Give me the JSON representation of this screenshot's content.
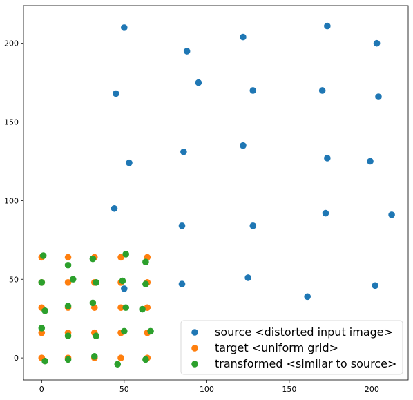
{
  "chart_data": {
    "type": "scatter",
    "title": "",
    "xlabel": "",
    "ylabel": "",
    "xlim": [
      -11,
      222
    ],
    "ylim": [
      -14,
      224
    ],
    "x_ticks": [
      0,
      50,
      100,
      150,
      200
    ],
    "y_ticks": [
      0,
      50,
      100,
      150,
      200
    ],
    "x_tick_labels": [
      "0",
      "50",
      "100",
      "150",
      "200"
    ],
    "y_tick_labels": [
      "0",
      "50",
      "100",
      "150",
      "200"
    ],
    "grid": false,
    "legend": {
      "position": "bottom-right"
    },
    "series": [
      {
        "name": "source <distorted input image>",
        "color": "#1f77b4",
        "points": [
          [
            50,
            210
          ],
          [
            122,
            204
          ],
          [
            173,
            211
          ],
          [
            203,
            200
          ],
          [
            88,
            195
          ],
          [
            45,
            168
          ],
          [
            95,
            175
          ],
          [
            128,
            170
          ],
          [
            170,
            170
          ],
          [
            204,
            166
          ],
          [
            86,
            131
          ],
          [
            53,
            124
          ],
          [
            122,
            135
          ],
          [
            173,
            127
          ],
          [
            199,
            125
          ],
          [
            44,
            95
          ],
          [
            85,
            84
          ],
          [
            128,
            84
          ],
          [
            172,
            92
          ],
          [
            212,
            91
          ],
          [
            85,
            47
          ],
          [
            125,
            51
          ],
          [
            161,
            39
          ],
          [
            202,
            46
          ],
          [
            50,
            44
          ]
        ]
      },
      {
        "name": "target <uniform grid>",
        "color": "#ff7f0e",
        "points": [
          [
            0,
            64
          ],
          [
            16,
            64
          ],
          [
            32,
            64
          ],
          [
            48,
            64
          ],
          [
            64,
            64
          ],
          [
            0,
            48
          ],
          [
            16,
            48
          ],
          [
            32,
            48
          ],
          [
            48,
            48
          ],
          [
            64,
            48
          ],
          [
            0,
            32
          ],
          [
            16,
            32
          ],
          [
            32,
            32
          ],
          [
            48,
            32
          ],
          [
            64,
            32
          ],
          [
            0,
            16
          ],
          [
            16,
            16
          ],
          [
            32,
            16
          ],
          [
            48,
            16
          ],
          [
            64,
            16
          ],
          [
            0,
            0
          ],
          [
            16,
            0
          ],
          [
            32,
            0
          ],
          [
            48,
            0
          ],
          [
            64,
            0
          ]
        ]
      },
      {
        "name": "transformed <similar to source>",
        "color": "#2ca02c",
        "points": [
          [
            1,
            65
          ],
          [
            16,
            59
          ],
          [
            31,
            63
          ],
          [
            51,
            66
          ],
          [
            63,
            61
          ],
          [
            0,
            48
          ],
          [
            19,
            50
          ],
          [
            33,
            48
          ],
          [
            49,
            49
          ],
          [
            63,
            47
          ],
          [
            2,
            30
          ],
          [
            16,
            33
          ],
          [
            31,
            35
          ],
          [
            51,
            32
          ],
          [
            61,
            31
          ],
          [
            0,
            19
          ],
          [
            16,
            14
          ],
          [
            33,
            14
          ],
          [
            50,
            17
          ],
          [
            66,
            17
          ],
          [
            2,
            -2
          ],
          [
            16,
            -1
          ],
          [
            32,
            1
          ],
          [
            46,
            -4
          ],
          [
            63,
            -1
          ]
        ]
      }
    ]
  }
}
